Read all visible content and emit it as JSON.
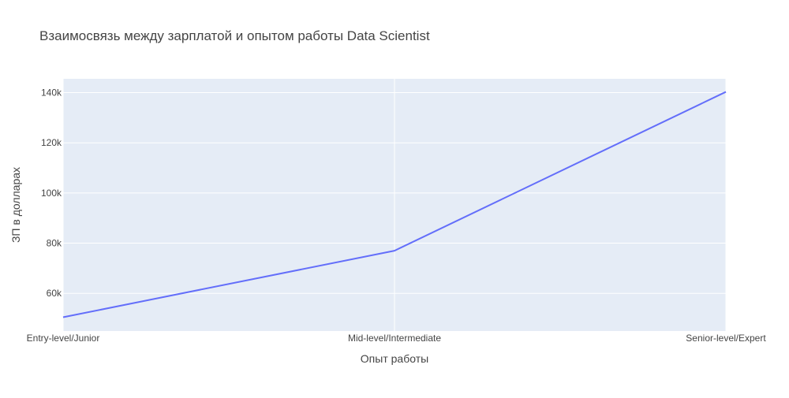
{
  "chart_data": {
    "type": "line",
    "title": "Взаимосвязь между зарплатой и опытом работы Data Scientist",
    "xlabel": "Опыт работы",
    "ylabel": "ЗП в долларах",
    "categories": [
      "Entry-level/Junior",
      "Mid-level/Intermediate",
      "Senior-level/Expert"
    ],
    "series": [
      {
        "values": [
          50500,
          77000,
          140300
        ]
      }
    ],
    "ylim": [
      45000,
      145500
    ],
    "yticks": [
      60000,
      80000,
      100000,
      120000,
      140000
    ],
    "ytick_labels": [
      "60k",
      "80k",
      "100k",
      "120k",
      "140k"
    ],
    "grid": true,
    "legend": "none",
    "colors": {
      "line": "#636efa",
      "plot_bg": "#e5ecf6",
      "grid": "#ffffff",
      "text": "#444444"
    }
  }
}
